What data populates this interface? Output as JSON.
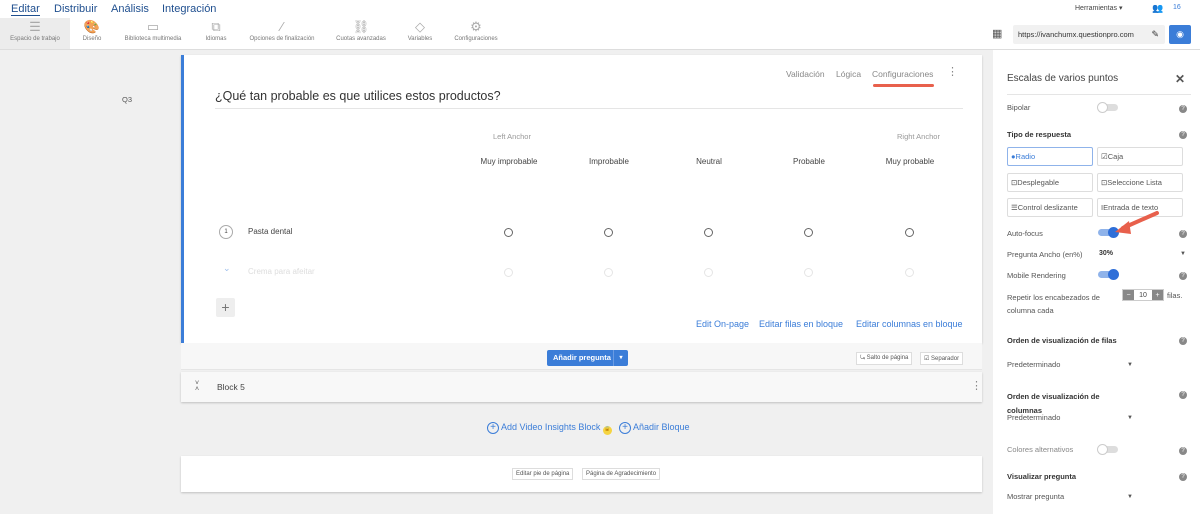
{
  "topnav": {
    "tabs": [
      "Editar",
      "Distribuir",
      "Análisis",
      "Integración"
    ],
    "tools": "Herramientas",
    "users_count": "16"
  },
  "toolbar": {
    "items": [
      "Espacio de trabajo",
      "Diseño",
      "Biblioteca multimedia",
      "Idiomas",
      "Opciones de finalización",
      "Cuotas avanzadas",
      "Variables",
      "Configuraciones"
    ],
    "url": "https://ivanchumx.questionpro.com"
  },
  "question": {
    "number": "Q3",
    "links": [
      "Validación",
      "Lógica",
      "Configuraciones"
    ],
    "title": "¿Qué tan probable es que utilices estos productos?",
    "left_anchor": "Left Anchor",
    "right_anchor": "Right Anchor",
    "columns": [
      "Muy improbable",
      "Improbable",
      "Neutral",
      "Probable",
      "Muy probable"
    ],
    "rows": [
      {
        "num": "1",
        "label": "Pasta dental"
      },
      {
        "label": "Crema para afeitar"
      }
    ],
    "bottom_links": [
      "Edit On-page",
      "Editar filas en bloque",
      "Editar columnas en bloque"
    ]
  },
  "actions": {
    "add_question": "Añadir pregunta",
    "page_break": "Salto de página",
    "separator": "Separador",
    "block": "Block 5",
    "add_video": "Add Video Insights Block",
    "add_block": "Añadir Bloque",
    "footer_btns": [
      "Editar pie de página",
      "Página de Agradecimiento"
    ]
  },
  "panel": {
    "title": "Escalas de varios puntos",
    "bipolar": "Bipolar",
    "bipolar_on": false,
    "response_type": "Tipo de respuesta",
    "options": [
      "Radio",
      "Caja",
      "Desplegable",
      "Seleccione Lista",
      "Control deslizante",
      "Entrada de texto"
    ],
    "selected_option": "Radio",
    "autofocus": "Auto-focus",
    "autofocus_on": true,
    "width_label": "Pregunta Ancho (en%)",
    "width_value": "30%",
    "mobile": "Mobile Rendering",
    "mobile_on": true,
    "repeat_label": "Repetir los encabezados de columna cada",
    "repeat_value": "10",
    "repeat_unit": "filas.",
    "row_order": "Orden de visualización de filas",
    "row_order_value": "Predeterminado",
    "col_order": "Orden de visualización de columnas",
    "col_order_value": "Predeterminado",
    "alt_colors": "Colores alternativos",
    "alt_colors_on": false,
    "display": "Visualizar pregunta",
    "display_value": "Mostrar pregunta"
  },
  "colors": {
    "accent": "#3b7dd8",
    "annotation": "#e8604c"
  }
}
